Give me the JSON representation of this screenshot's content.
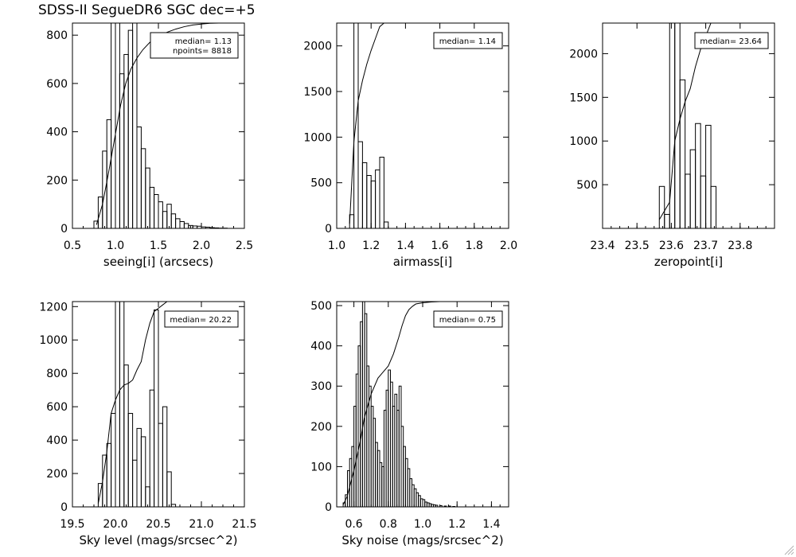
{
  "title": "SDSS-II SegueDR6 SGC dec=+5",
  "chart_data": [
    {
      "id": "seeing",
      "type": "bar",
      "style": "step-histogram",
      "xlabel": "seeing[i] (arcsecs)",
      "xlim": [
        0.5,
        2.5
      ],
      "ylim": [
        0,
        850
      ],
      "xticks": [
        0.5,
        1.0,
        1.5,
        2.0,
        2.5
      ],
      "xtick_labels": [
        "0.5",
        "1.0",
        "1.5",
        "2.0",
        "2.5"
      ],
      "yticks": [
        0,
        200,
        400,
        600,
        800
      ],
      "ytick_labels": [
        "0",
        "200",
        "400",
        "600",
        "800"
      ],
      "legend": [
        "median= 1.13",
        "npoints= 8818"
      ],
      "bin_width": 0.05,
      "x": [
        0.75,
        0.8,
        0.85,
        0.9,
        0.95,
        1.0,
        1.05,
        1.1,
        1.15,
        1.2,
        1.25,
        1.3,
        1.35,
        1.4,
        1.45,
        1.5,
        1.55,
        1.6,
        1.65,
        1.7,
        1.75,
        1.8,
        1.85,
        1.9,
        1.95,
        2.0,
        2.05,
        2.1,
        2.15,
        2.2,
        2.25,
        2.3
      ],
      "values": [
        30,
        130,
        320,
        450,
        900,
        860,
        640,
        720,
        820,
        850,
        420,
        330,
        250,
        170,
        140,
        110,
        70,
        100,
        60,
        40,
        28,
        20,
        12,
        10,
        9,
        6,
        5,
        3,
        2,
        1,
        1,
        0
      ],
      "cumulative": {
        "x": [
          0.78,
          0.85,
          0.92,
          1.0,
          1.06,
          1.12,
          1.18,
          1.25,
          1.32,
          1.4,
          1.5,
          1.6,
          1.7,
          1.8,
          1.9,
          2.0,
          2.1,
          2.2,
          2.3
        ],
        "values": [
          15,
          100,
          230,
          390,
          510,
          600,
          660,
          705,
          740,
          770,
          795,
          812,
          825,
          835,
          842,
          846,
          849,
          850,
          850
        ]
      }
    },
    {
      "id": "airmass",
      "type": "bar",
      "style": "step-histogram",
      "xlabel": "airmass[i]",
      "xlim": [
        1.0,
        2.0
      ],
      "ylim": [
        0,
        2250
      ],
      "xticks": [
        1.0,
        1.2,
        1.4,
        1.6,
        1.8,
        2.0
      ],
      "xtick_labels": [
        "1.0",
        "1.2",
        "1.4",
        "1.6",
        "1.8",
        "2.0"
      ],
      "yticks": [
        0,
        500,
        1000,
        1500,
        2000
      ],
      "ytick_labels": [
        "0",
        "500",
        "1000",
        "1500",
        "2000"
      ],
      "legend": [
        "median= 1.14"
      ],
      "bin_width": 0.025,
      "x": [
        1.075,
        1.1,
        1.125,
        1.15,
        1.175,
        1.2,
        1.225,
        1.25,
        1.275
      ],
      "values": [
        150,
        2300,
        950,
        720,
        580,
        520,
        640,
        780,
        70
      ],
      "cumulative": {
        "x": [
          1.075,
          1.1,
          1.125,
          1.15,
          1.175,
          1.2,
          1.225,
          1.25,
          1.275,
          1.3
        ],
        "values": [
          50,
          950,
          1400,
          1620,
          1800,
          1950,
          2080,
          2210,
          2250,
          2250
        ]
      }
    },
    {
      "id": "zeropoint",
      "type": "bar",
      "style": "step-histogram",
      "xlabel": "zeropoint[i]",
      "xlim": [
        23.4,
        23.9
      ],
      "ylim": [
        0,
        2350
      ],
      "xticks": [
        23.4,
        23.5,
        23.6,
        23.7,
        23.8
      ],
      "xtick_labels": [
        "23.4",
        "23.5",
        "23.6",
        "23.7",
        "23.8"
      ],
      "yticks": [
        500,
        1000,
        1500,
        2000
      ],
      "ytick_labels": [
        "500",
        "1000",
        "1500",
        "2000"
      ],
      "legend": [
        "median= 23.64"
      ],
      "bin_width": 0.015,
      "x": [
        23.565,
        23.58,
        23.595,
        23.61,
        23.625,
        23.64,
        23.655,
        23.67,
        23.685,
        23.7,
        23.715
      ],
      "values": [
        480,
        160,
        2400,
        2400,
        1700,
        620,
        900,
        1200,
        600,
        1180,
        480
      ],
      "cumulative": {
        "x": [
          23.565,
          23.595,
          23.61,
          23.625,
          23.64,
          23.655,
          23.67,
          23.685,
          23.7,
          23.715,
          23.73
        ],
        "values": [
          100,
          300,
          1000,
          1250,
          1450,
          1600,
          1850,
          2050,
          2200,
          2350,
          2350
        ]
      }
    },
    {
      "id": "sky-level",
      "type": "bar",
      "style": "step-histogram",
      "xlabel": "Sky level (mags/srcsec^2)",
      "xlim": [
        19.5,
        21.5
      ],
      "ylim": [
        0,
        1230
      ],
      "xticks": [
        19.5,
        20.0,
        20.5,
        21.0,
        21.5
      ],
      "xtick_labels": [
        "19.5",
        "20.0",
        "20.5",
        "21.0",
        "21.5"
      ],
      "yticks": [
        0,
        200,
        400,
        600,
        800,
        1000,
        1200
      ],
      "ytick_labels": [
        "0",
        "200",
        "400",
        "600",
        "800",
        "1000",
        "1200"
      ],
      "legend": [
        "median= 20.22"
      ],
      "bin_width": 0.05,
      "x": [
        19.8,
        19.85,
        19.9,
        19.95,
        20.0,
        20.05,
        20.1,
        20.15,
        20.2,
        20.25,
        20.3,
        20.35,
        20.4,
        20.45,
        20.5,
        20.55,
        20.6,
        20.65,
        20.7
      ],
      "values": [
        140,
        310,
        380,
        560,
        1250,
        1250,
        850,
        560,
        280,
        470,
        420,
        120,
        700,
        1180,
        500,
        600,
        210,
        15,
        0
      ],
      "cumulative": {
        "x": [
          19.8,
          19.85,
          19.9,
          19.95,
          20.0,
          20.05,
          20.1,
          20.15,
          20.2,
          20.25,
          20.3,
          20.35,
          20.4,
          20.45,
          20.5,
          20.55,
          20.6
        ],
        "values": [
          20,
          150,
          330,
          560,
          640,
          700,
          730,
          740,
          760,
          820,
          870,
          1000,
          1100,
          1170,
          1190,
          1210,
          1230
        ]
      }
    },
    {
      "id": "sky-noise",
      "type": "bar",
      "style": "step-histogram",
      "xlabel": "Sky noise (mags/srcsec^2)",
      "xlim": [
        0.5,
        1.5
      ],
      "ylim": [
        0,
        510
      ],
      "xticks": [
        0.6,
        0.8,
        1.0,
        1.2,
        1.4
      ],
      "xtick_labels": [
        "0.6",
        "0.8",
        "1.0",
        "1.2",
        "1.4"
      ],
      "yticks": [
        0,
        100,
        200,
        300,
        400,
        500
      ],
      "ytick_labels": [
        "0",
        "100",
        "200",
        "300",
        "400",
        "500"
      ],
      "legend": [
        "median= 0.75"
      ],
      "bin_width": 0.0125,
      "x": [
        0.5375,
        0.55,
        0.5625,
        0.575,
        0.5875,
        0.6,
        0.6125,
        0.625,
        0.6375,
        0.65,
        0.6625,
        0.675,
        0.6875,
        0.7,
        0.7125,
        0.725,
        0.7375,
        0.75,
        0.7625,
        0.775,
        0.7875,
        0.8,
        0.8125,
        0.825,
        0.8375,
        0.85,
        0.8625,
        0.875,
        0.8875,
        0.9,
        0.9125,
        0.925,
        0.9375,
        0.95,
        0.9625,
        0.975,
        0.9875,
        1.0,
        1.0125,
        1.025,
        1.0375,
        1.05,
        1.0625,
        1.075,
        1.1,
        1.125,
        1.15,
        1.175,
        1.2
      ],
      "values": [
        10,
        30,
        90,
        120,
        150,
        250,
        330,
        400,
        460,
        520,
        480,
        350,
        300,
        250,
        220,
        160,
        140,
        110,
        100,
        240,
        290,
        340,
        310,
        250,
        280,
        240,
        300,
        200,
        150,
        120,
        95,
        70,
        55,
        45,
        35,
        28,
        20,
        18,
        12,
        10,
        8,
        6,
        5,
        4,
        3,
        2,
        2,
        1,
        0
      ],
      "cumulative": {
        "x": [
          0.5375,
          0.56,
          0.6,
          0.64,
          0.66,
          0.7,
          0.74,
          0.76,
          0.8,
          0.83,
          0.86,
          0.88,
          0.9,
          0.92,
          0.94,
          0.96,
          1.0,
          1.05,
          1.1,
          1.2
        ],
        "values": [
          5,
          25,
          90,
          170,
          220,
          280,
          320,
          330,
          350,
          380,
          420,
          450,
          475,
          490,
          498,
          504,
          507,
          509,
          510,
          510
        ]
      }
    }
  ]
}
